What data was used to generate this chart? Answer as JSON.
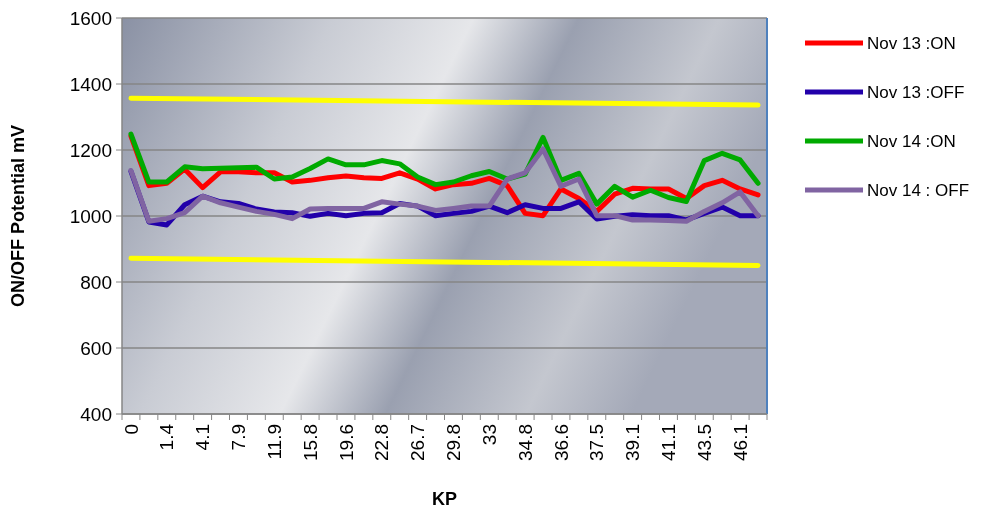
{
  "chart_data": {
    "type": "line",
    "xlabel": "KP",
    "ylabel": "ON/OFF Potential mV",
    "categories": [
      "0",
      null,
      "1.4",
      null,
      "4.1",
      null,
      "7.9",
      null,
      "11.9",
      null,
      "15.8",
      null,
      "19.6",
      null,
      "22.8",
      null,
      "26.7",
      null,
      "29.8",
      null,
      "33",
      null,
      "34.8",
      null,
      "36.6",
      null,
      "37.5",
      null,
      "39.1",
      null,
      "41.1",
      null,
      "43.5",
      null,
      "46.1",
      null
    ],
    "series": [
      {
        "name": "Nov 13 :ON",
        "color": "#ff0000",
        "values": [
          1242,
          1092,
          1099,
          1142,
          1086,
          1134,
          1134,
          1131,
          1131,
          1103,
          1108,
          1116,
          1121,
          1116,
          1114,
          1131,
          1112,
          1082,
          1095,
          1099,
          1114,
          1092,
          1008,
          1001,
          1082,
          1053,
          1014,
          1066,
          1084,
          1082,
          1082,
          1053,
          1092,
          1108,
          1082,
          1064
        ]
      },
      {
        "name": "Nov 13 :OFF",
        "color": "#2200aa",
        "values": [
          1135,
          982,
          973,
          1034,
          1060,
          1043,
          1038,
          1021,
          1012,
          1010,
          999,
          1008,
          1001,
          1008,
          1010,
          1038,
          1030,
          1001,
          1008,
          1014,
          1030,
          1010,
          1034,
          1023,
          1023,
          1043,
          991,
          999,
          1004,
          1001,
          1001,
          988,
          1008,
          1027,
          1001,
          1001
        ]
      },
      {
        "name": "Nov 14 :ON",
        "color": "#00aa00",
        "values": [
          1248,
          1103,
          1103,
          1149,
          1143,
          1145,
          1146,
          1148,
          1112,
          1118,
          1144,
          1173,
          1155,
          1155,
          1168,
          1158,
          1118,
          1095,
          1103,
          1122,
          1135,
          1112,
          1127,
          1238,
          1108,
          1129,
          1036,
          1090,
          1057,
          1078,
          1056,
          1044,
          1168,
          1190,
          1170,
          1099
        ]
      },
      {
        "name": "Nov 14 : OFF",
        "color": "#8064a2",
        "values": [
          1138,
          984,
          992,
          1010,
          1060,
          1040,
          1027,
          1014,
          1005,
          992,
          1021,
          1023,
          1023,
          1023,
          1043,
          1036,
          1030,
          1017,
          1023,
          1030,
          1030,
          1112,
          1131,
          1203,
          1090,
          1112,
          1001,
          1001,
          988,
          988,
          986,
          984,
          1014,
          1040,
          1073,
          1001
        ]
      },
      {
        "color": "#ffff00",
        "values": [
          1357,
          null,
          null,
          null,
          null,
          null,
          null,
          null,
          null,
          null,
          null,
          null,
          null,
          null,
          null,
          null,
          null,
          null,
          null,
          null,
          null,
          null,
          null,
          null,
          null,
          null,
          null,
          null,
          null,
          null,
          null,
          null,
          null,
          null,
          null,
          1336
        ]
      },
      {
        "color": "#ffff00",
        "values": [
          872,
          null,
          null,
          null,
          null,
          null,
          null,
          null,
          null,
          null,
          null,
          null,
          null,
          null,
          null,
          null,
          null,
          null,
          null,
          null,
          null,
          null,
          null,
          null,
          null,
          null,
          null,
          null,
          null,
          null,
          null,
          null,
          null,
          null,
          null,
          850
        ]
      }
    ],
    "ylim": [
      400,
      1600
    ],
    "yticks": [
      400,
      600,
      800,
      1000,
      1200,
      1400,
      1600
    ],
    "grid": "y",
    "legend": "right",
    "marker": "none",
    "line_style": "solid"
  }
}
